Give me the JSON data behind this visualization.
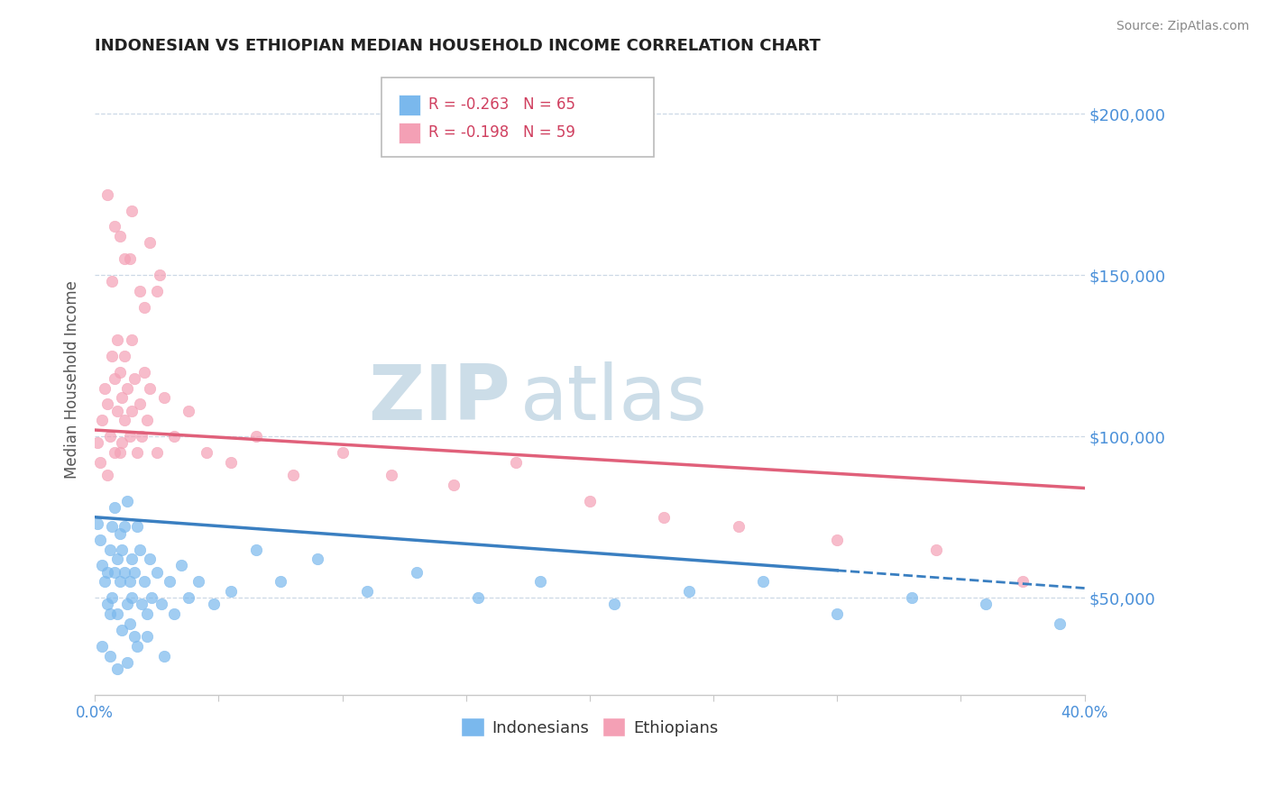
{
  "title": "INDONESIAN VS ETHIOPIAN MEDIAN HOUSEHOLD INCOME CORRELATION CHART",
  "source": "Source: ZipAtlas.com",
  "ylabel": "Median Household Income",
  "ytick_labels": [
    "$50,000",
    "$100,000",
    "$150,000",
    "$200,000"
  ],
  "ytick_values": [
    50000,
    100000,
    150000,
    200000
  ],
  "xlim": [
    0.0,
    0.4
  ],
  "ylim": [
    20000,
    215000
  ],
  "legend_r1": "R = -0.263",
  "legend_n1": "N = 65",
  "legend_r2": "R = -0.198",
  "legend_n2": "N = 59",
  "indonesian_color": "#7ab8ed",
  "ethiopian_color": "#f4a0b5",
  "trendline_indonesian_color": "#3a7fc1",
  "trendline_ethiopian_color": "#e0607a",
  "watermark_zip": "ZIP",
  "watermark_atlas": "atlas",
  "watermark_color": "#ccdde8",
  "indonesian_x": [
    0.001,
    0.002,
    0.003,
    0.004,
    0.005,
    0.005,
    0.006,
    0.006,
    0.007,
    0.007,
    0.008,
    0.008,
    0.009,
    0.009,
    0.01,
    0.01,
    0.011,
    0.011,
    0.012,
    0.012,
    0.013,
    0.013,
    0.014,
    0.014,
    0.015,
    0.015,
    0.016,
    0.016,
    0.017,
    0.018,
    0.019,
    0.02,
    0.021,
    0.022,
    0.023,
    0.025,
    0.027,
    0.03,
    0.032,
    0.035,
    0.038,
    0.042,
    0.048,
    0.055,
    0.065,
    0.075,
    0.09,
    0.11,
    0.13,
    0.155,
    0.18,
    0.21,
    0.24,
    0.27,
    0.3,
    0.33,
    0.36,
    0.39,
    0.003,
    0.006,
    0.009,
    0.013,
    0.017,
    0.021,
    0.028
  ],
  "indonesian_y": [
    73000,
    68000,
    60000,
    55000,
    48000,
    58000,
    45000,
    65000,
    50000,
    72000,
    58000,
    78000,
    62000,
    45000,
    70000,
    55000,
    65000,
    40000,
    58000,
    72000,
    48000,
    80000,
    55000,
    42000,
    62000,
    50000,
    58000,
    38000,
    72000,
    65000,
    48000,
    55000,
    45000,
    62000,
    50000,
    58000,
    48000,
    55000,
    45000,
    60000,
    50000,
    55000,
    48000,
    52000,
    65000,
    55000,
    62000,
    52000,
    58000,
    50000,
    55000,
    48000,
    52000,
    55000,
    45000,
    50000,
    48000,
    42000,
    35000,
    32000,
    28000,
    30000,
    35000,
    38000,
    32000
  ],
  "ethiopian_x": [
    0.001,
    0.002,
    0.003,
    0.004,
    0.005,
    0.005,
    0.006,
    0.007,
    0.008,
    0.008,
    0.009,
    0.009,
    0.01,
    0.01,
    0.011,
    0.011,
    0.012,
    0.012,
    0.013,
    0.014,
    0.015,
    0.015,
    0.016,
    0.017,
    0.018,
    0.019,
    0.02,
    0.021,
    0.022,
    0.025,
    0.028,
    0.032,
    0.038,
    0.045,
    0.055,
    0.065,
    0.08,
    0.1,
    0.12,
    0.145,
    0.17,
    0.2,
    0.23,
    0.26,
    0.3,
    0.34,
    0.375,
    0.005,
    0.008,
    0.012,
    0.015,
    0.018,
    0.022,
    0.026,
    0.01,
    0.007,
    0.014,
    0.02,
    0.025
  ],
  "ethiopian_y": [
    98000,
    92000,
    105000,
    115000,
    88000,
    110000,
    100000,
    125000,
    95000,
    118000,
    130000,
    108000,
    120000,
    95000,
    112000,
    98000,
    125000,
    105000,
    115000,
    100000,
    130000,
    108000,
    118000,
    95000,
    110000,
    100000,
    120000,
    105000,
    115000,
    95000,
    112000,
    100000,
    108000,
    95000,
    92000,
    100000,
    88000,
    95000,
    88000,
    85000,
    92000,
    80000,
    75000,
    72000,
    68000,
    65000,
    55000,
    175000,
    165000,
    155000,
    170000,
    145000,
    160000,
    150000,
    162000,
    148000,
    155000,
    140000,
    145000
  ]
}
